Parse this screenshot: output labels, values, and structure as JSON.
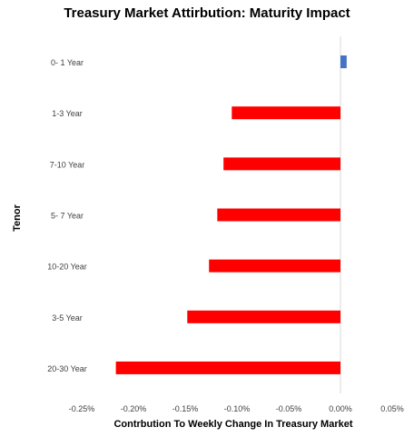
{
  "chart_data": {
    "type": "bar",
    "orientation": "horizontal",
    "title": "Treasury Market Attirbution: Maturity Impact",
    "xlabel": "Contrbution To Weekly Change In Treasury Market",
    "ylabel": "Tenor",
    "categories": [
      "0- 1 Year",
      "1-3 Year",
      "7-10 Year",
      "5- 7 Year",
      "10-20 Year",
      "3-5 Year",
      "20-30 Year"
    ],
    "values": [
      0.006,
      -0.105,
      -0.113,
      -0.119,
      -0.127,
      -0.148,
      -0.217
    ],
    "xlim": [
      -0.25,
      0.05
    ],
    "xticks": [
      "-0.25%",
      "-0.20%",
      "-0.15%",
      "-0.10%",
      "-0.05%",
      "0.00%",
      "0.05%"
    ],
    "grid": false,
    "legend": "none",
    "colors": {
      "positive": "#4472c4",
      "negative": "#ff0000",
      "zero_line": "#d9d9d9"
    }
  }
}
